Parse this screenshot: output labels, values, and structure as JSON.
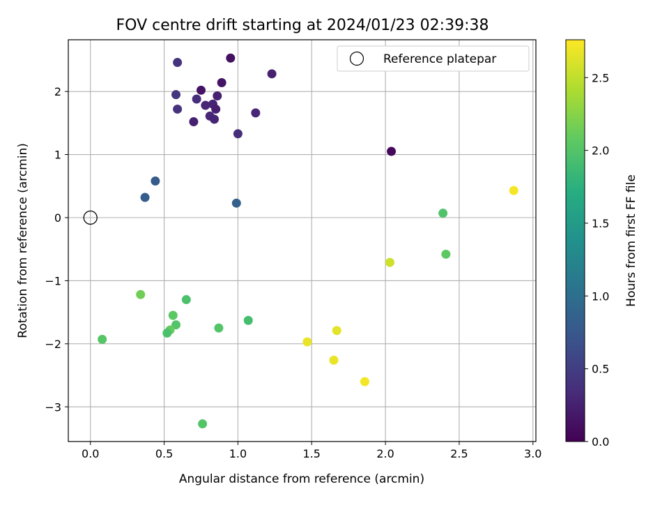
{
  "chart_data": {
    "type": "scatter",
    "title": "FOV centre drift starting at 2024/01/23 02:39:38",
    "xlabel": "Angular distance from reference (arcmin)",
    "ylabel": "Rotation from reference (arcmin)",
    "xlim": [
      -0.15,
      3.02
    ],
    "ylim": [
      -3.55,
      2.82
    ],
    "xticks": [
      0.0,
      0.5,
      1.0,
      1.5,
      2.0,
      2.5,
      3.0
    ],
    "xtick_labels": [
      "0.0",
      "0.5",
      "1.0",
      "1.5",
      "2.0",
      "2.5",
      "3.0"
    ],
    "yticks": [
      -3,
      -2,
      -1,
      0,
      1,
      2
    ],
    "ytick_labels": [
      "−3",
      "−2",
      "−1",
      "0",
      "1",
      "2"
    ],
    "grid": true,
    "legend": {
      "position": "top-right",
      "entries": [
        "Reference platepar"
      ]
    },
    "reference_point": {
      "x": 0.0,
      "y": 0.0,
      "label": "Reference platepar"
    },
    "colorbar": {
      "label": "Hours from first FF file",
      "colormap": "viridis",
      "range": [
        0.0,
        2.76
      ],
      "ticks": [
        0.0,
        0.5,
        1.0,
        1.5,
        2.0,
        2.5
      ],
      "tick_labels": [
        "0.0",
        "0.5",
        "1.0",
        "1.5",
        "2.0",
        "2.5"
      ]
    },
    "points": [
      {
        "x": 0.95,
        "y": 2.53,
        "c": 0.12
      },
      {
        "x": 0.59,
        "y": 2.46,
        "c": 0.4
      },
      {
        "x": 1.23,
        "y": 2.28,
        "c": 0.25
      },
      {
        "x": 0.89,
        "y": 2.14,
        "c": 0.15
      },
      {
        "x": 0.75,
        "y": 2.02,
        "c": 0.14
      },
      {
        "x": 0.58,
        "y": 1.95,
        "c": 0.42
      },
      {
        "x": 0.86,
        "y": 1.93,
        "c": 0.25
      },
      {
        "x": 0.72,
        "y": 1.88,
        "c": 0.35
      },
      {
        "x": 0.78,
        "y": 1.78,
        "c": 0.3
      },
      {
        "x": 0.83,
        "y": 1.8,
        "c": 0.28
      },
      {
        "x": 0.85,
        "y": 1.72,
        "c": 0.24
      },
      {
        "x": 0.59,
        "y": 1.72,
        "c": 0.4
      },
      {
        "x": 1.12,
        "y": 1.66,
        "c": 0.3
      },
      {
        "x": 0.81,
        "y": 1.61,
        "c": 0.3
      },
      {
        "x": 0.84,
        "y": 1.56,
        "c": 0.28
      },
      {
        "x": 0.7,
        "y": 1.52,
        "c": 0.25
      },
      {
        "x": 1.0,
        "y": 1.33,
        "c": 0.35
      },
      {
        "x": 2.04,
        "y": 1.05,
        "c": 0.06
      },
      {
        "x": 0.44,
        "y": 0.58,
        "c": 0.8
      },
      {
        "x": 0.37,
        "y": 0.32,
        "c": 0.82
      },
      {
        "x": 0.99,
        "y": 0.23,
        "c": 0.85
      },
      {
        "x": 2.87,
        "y": 0.43,
        "c": 2.72
      },
      {
        "x": 2.39,
        "y": 0.07,
        "c": 1.98
      },
      {
        "x": 2.41,
        "y": -0.58,
        "c": 2.06
      },
      {
        "x": 2.03,
        "y": -0.71,
        "c": 2.55
      },
      {
        "x": 0.34,
        "y": -1.22,
        "c": 2.15
      },
      {
        "x": 0.65,
        "y": -1.3,
        "c": 1.96
      },
      {
        "x": 0.56,
        "y": -1.55,
        "c": 2.06
      },
      {
        "x": 1.07,
        "y": -1.63,
        "c": 1.92
      },
      {
        "x": 0.58,
        "y": -1.7,
        "c": 2.0
      },
      {
        "x": 0.87,
        "y": -1.75,
        "c": 2.0
      },
      {
        "x": 0.54,
        "y": -1.78,
        "c": 2.1
      },
      {
        "x": 1.67,
        "y": -1.79,
        "c": 2.65
      },
      {
        "x": 0.52,
        "y": -1.83,
        "c": 1.95
      },
      {
        "x": 0.08,
        "y": -1.93,
        "c": 2.02
      },
      {
        "x": 1.47,
        "y": -1.97,
        "c": 2.68
      },
      {
        "x": 1.65,
        "y": -2.26,
        "c": 2.68
      },
      {
        "x": 1.86,
        "y": -2.6,
        "c": 2.72
      },
      {
        "x": 0.76,
        "y": -3.27,
        "c": 2.0
      }
    ]
  }
}
